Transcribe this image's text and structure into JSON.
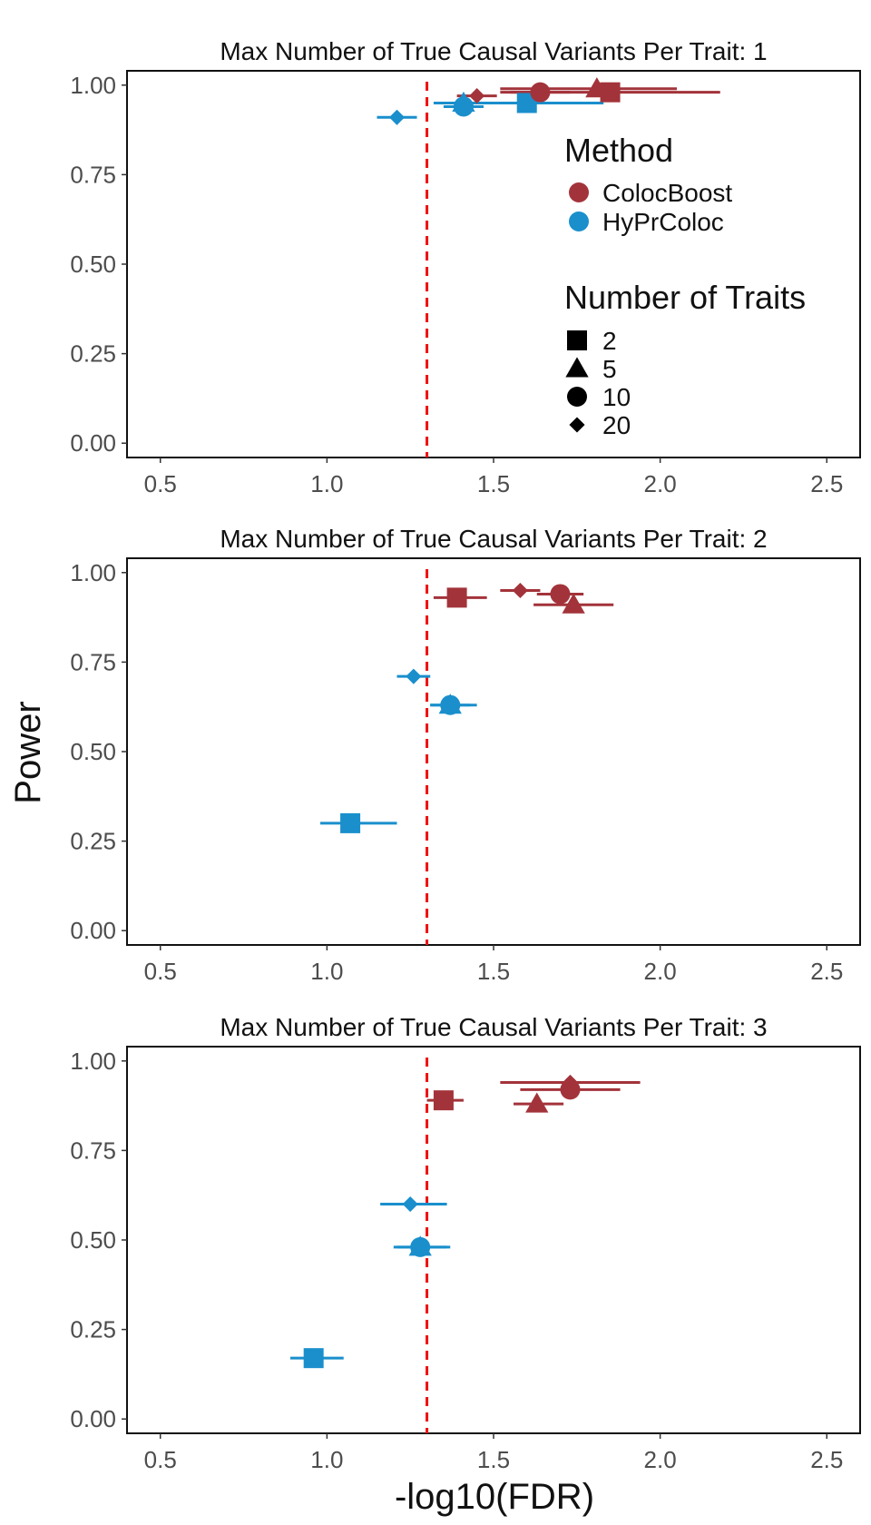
{
  "axes": {
    "xlabel": "-log10(FDR)",
    "ylabel": "Power"
  },
  "legend": {
    "method_title": "Method",
    "methods": [
      {
        "name": "ColocBoost",
        "color": "#a3333a"
      },
      {
        "name": "HyPrColoc",
        "color": "#1a8fcc"
      }
    ],
    "traits_title": "Number of Traits",
    "traits": [
      {
        "label": "2",
        "shape": "square"
      },
      {
        "label": "5",
        "shape": "triangle"
      },
      {
        "label": "10",
        "shape": "circle"
      },
      {
        "label": "20",
        "shape": "diamond"
      }
    ],
    "placement": "inside panel 1, right"
  },
  "chart_data": [
    {
      "type": "scatter",
      "title": "Max Number of True Causal Variants Per Trait: 1",
      "xlim": [
        0.4,
        2.6
      ],
      "ylim": [
        -0.04,
        1.04
      ],
      "xticks": [
        "0.5",
        "1.0",
        "1.5",
        "2.0",
        "2.5"
      ],
      "yticks": [
        "0.00",
        "0.25",
        "0.50",
        "0.75",
        "1.00"
      ],
      "reference_line_x": 1.3,
      "grid": false,
      "points": [
        {
          "method": "HyPrColoc",
          "traits": "20",
          "x": 1.21,
          "y": 0.91,
          "xmin": 1.15,
          "xmax": 1.27
        },
        {
          "method": "HyPrColoc",
          "traits": "10",
          "x": 1.41,
          "y": 0.94,
          "xmin": 1.35,
          "xmax": 1.47
        },
        {
          "method": "HyPrColoc",
          "traits": "5",
          "x": 1.41,
          "y": 0.95,
          "xmin": 1.35,
          "xmax": 1.52
        },
        {
          "method": "HyPrColoc",
          "traits": "2",
          "x": 1.6,
          "y": 0.95,
          "xmin": 1.32,
          "xmax": 1.83
        },
        {
          "method": "ColocBoost",
          "traits": "20",
          "x": 1.45,
          "y": 0.97,
          "xmin": 1.39,
          "xmax": 1.51
        },
        {
          "method": "ColocBoost",
          "traits": "10",
          "x": 1.64,
          "y": 0.98,
          "xmin": 1.55,
          "xmax": 1.73
        },
        {
          "method": "ColocBoost",
          "traits": "5",
          "x": 1.81,
          "y": 0.99,
          "xmin": 1.52,
          "xmax": 2.05
        },
        {
          "method": "ColocBoost",
          "traits": "2",
          "x": 1.85,
          "y": 0.98,
          "xmin": 1.52,
          "xmax": 2.18
        }
      ]
    },
    {
      "type": "scatter",
      "title": "Max Number of True Causal Variants Per Trait: 2",
      "xlim": [
        0.4,
        2.6
      ],
      "ylim": [
        -0.04,
        1.04
      ],
      "xticks": [
        "0.5",
        "1.0",
        "1.5",
        "2.0",
        "2.5"
      ],
      "yticks": [
        "0.00",
        "0.25",
        "0.50",
        "0.75",
        "1.00"
      ],
      "reference_line_x": 1.3,
      "grid": false,
      "points": [
        {
          "method": "ColocBoost",
          "traits": "2",
          "x": 1.39,
          "y": 0.93,
          "xmin": 1.32,
          "xmax": 1.48
        },
        {
          "method": "ColocBoost",
          "traits": "20",
          "x": 1.58,
          "y": 0.95,
          "xmin": 1.52,
          "xmax": 1.64
        },
        {
          "method": "ColocBoost",
          "traits": "10",
          "x": 1.7,
          "y": 0.94,
          "xmin": 1.63,
          "xmax": 1.77
        },
        {
          "method": "ColocBoost",
          "traits": "5",
          "x": 1.74,
          "y": 0.91,
          "xmin": 1.62,
          "xmax": 1.86
        },
        {
          "method": "HyPrColoc",
          "traits": "20",
          "x": 1.26,
          "y": 0.71,
          "xmin": 1.21,
          "xmax": 1.31
        },
        {
          "method": "HyPrColoc",
          "traits": "10",
          "x": 1.37,
          "y": 0.63,
          "xmin": 1.31,
          "xmax": 1.43
        },
        {
          "method": "HyPrColoc",
          "traits": "5",
          "x": 1.37,
          "y": 0.63,
          "xmin": 1.31,
          "xmax": 1.45
        },
        {
          "method": "HyPrColoc",
          "traits": "2",
          "x": 1.07,
          "y": 0.3,
          "xmin": 0.98,
          "xmax": 1.21
        }
      ]
    },
    {
      "type": "scatter",
      "title": "Max Number of True Causal Variants Per Trait: 3",
      "xlim": [
        0.4,
        2.6
      ],
      "ylim": [
        -0.04,
        1.04
      ],
      "xticks": [
        "0.5",
        "1.0",
        "1.5",
        "2.0",
        "2.5"
      ],
      "yticks": [
        "0.00",
        "0.25",
        "0.50",
        "0.75",
        "1.00"
      ],
      "reference_line_x": 1.3,
      "grid": false,
      "points": [
        {
          "method": "ColocBoost",
          "traits": "2",
          "x": 1.35,
          "y": 0.89,
          "xmin": 1.3,
          "xmax": 1.41
        },
        {
          "method": "ColocBoost",
          "traits": "5",
          "x": 1.63,
          "y": 0.88,
          "xmin": 1.56,
          "xmax": 1.71
        },
        {
          "method": "ColocBoost",
          "traits": "10",
          "x": 1.73,
          "y": 0.92,
          "xmin": 1.58,
          "xmax": 1.88
        },
        {
          "method": "ColocBoost",
          "traits": "20",
          "x": 1.73,
          "y": 0.94,
          "xmin": 1.52,
          "xmax": 1.94
        },
        {
          "method": "HyPrColoc",
          "traits": "20",
          "x": 1.25,
          "y": 0.6,
          "xmin": 1.16,
          "xmax": 1.36
        },
        {
          "method": "HyPrColoc",
          "traits": "10",
          "x": 1.28,
          "y": 0.48,
          "xmin": 1.21,
          "xmax": 1.36
        },
        {
          "method": "HyPrColoc",
          "traits": "5",
          "x": 1.28,
          "y": 0.48,
          "xmin": 1.2,
          "xmax": 1.37
        },
        {
          "method": "HyPrColoc",
          "traits": "2",
          "x": 0.96,
          "y": 0.17,
          "xmin": 0.89,
          "xmax": 1.05
        }
      ]
    }
  ]
}
